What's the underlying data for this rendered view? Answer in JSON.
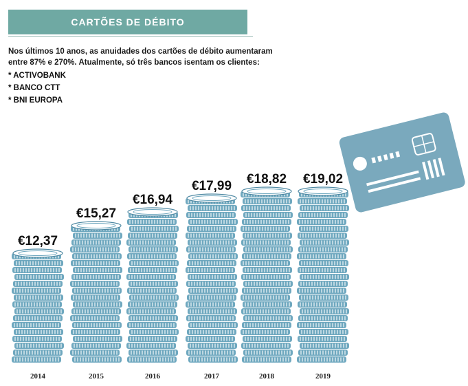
{
  "header": {
    "title": "CARTÕES DE DÉBITO"
  },
  "intro": {
    "line1": "Nos últimos 10 anos, as anuidades dos cartões de débito aumentaram",
    "line2": "entre 87% e 270%. Atualmente, só três bancos isentam os clientes:"
  },
  "banks": [
    "* ACTIVOBANK",
    "* BANCO CTT",
    "* BNI EUROPA"
  ],
  "colors": {
    "accent": "#6fa9a3",
    "coin": "#6fa8bf",
    "coin_dark": "#4d88a2",
    "card": "#7aa9bd"
  },
  "chart_data": {
    "type": "bar",
    "categories": [
      "2014",
      "2015",
      "2016",
      "2017",
      "2018",
      "2019"
    ],
    "values": [
      12.37,
      15.27,
      16.94,
      17.99,
      18.82,
      19.02
    ],
    "labels": [
      "€12,37",
      "€15,27",
      "€16,94",
      "€17,99",
      "€18,82",
      "€19,02"
    ],
    "title": "CARTÕES DE DÉBITO",
    "xlabel": "",
    "ylabel": "",
    "ylim": [
      0,
      20
    ]
  }
}
